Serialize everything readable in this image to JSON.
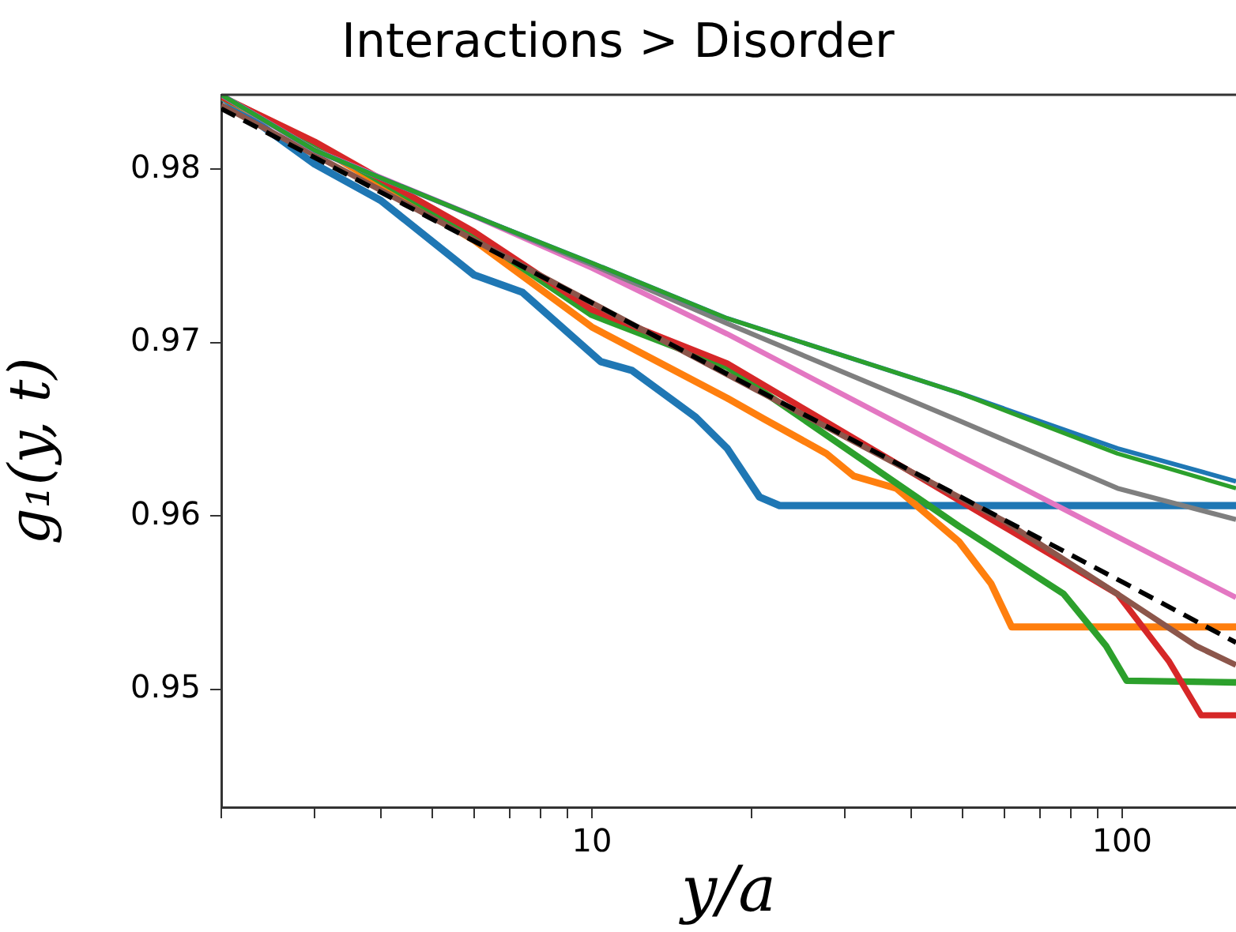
{
  "chart_data": {
    "type": "line",
    "title": "Interactions > Disorder",
    "xlabel": "y/a",
    "ylabel": "g₁(y, t)",
    "log": "x",
    "grid": false,
    "legend": false,
    "marker": "none",
    "xlim": [
      2,
      164
    ],
    "xticks": [
      {
        "value": 2,
        "label": null
      },
      {
        "value": 3,
        "label": null
      },
      {
        "value": 4,
        "label": null
      },
      {
        "value": 5,
        "label": null
      },
      {
        "value": 6,
        "label": null
      },
      {
        "value": 7,
        "label": null
      },
      {
        "value": 8,
        "label": null
      },
      {
        "value": 9,
        "label": null
      },
      10,
      {
        "value": 20,
        "label": null
      },
      {
        "value": 30,
        "label": null
      },
      {
        "value": 40,
        "label": null
      },
      {
        "value": 50,
        "label": null
      },
      {
        "value": 60,
        "label": null
      },
      {
        "value": 70,
        "label": null
      },
      {
        "value": 80,
        "label": null
      },
      {
        "value": 90,
        "label": null
      },
      100
    ],
    "ylim": [
      0.9432,
      0.9843
    ],
    "yticks": [
      0.95,
      0.96,
      0.97,
      0.98
    ],
    "series": [
      {
        "color": "#1f77b4",
        "line_style": "solid",
        "x": [
          2,
          3,
          4,
          6,
          7.4,
          10.4,
          11.9,
          15.7,
          18,
          20.7,
          22.6,
          60,
          164
        ],
        "values": [
          0.9842,
          0.9803,
          0.9782,
          0.9739,
          0.9729,
          0.9689,
          0.9684,
          0.9657,
          0.9639,
          0.9611,
          0.9606,
          0.9606,
          0.9606
        ]
      },
      {
        "color": "#ff7f0e",
        "line_style": "solid",
        "x": [
          2,
          3,
          6,
          10,
          18,
          21.1,
          27.7,
          31.2,
          37.5,
          49.3,
          56.6,
          61.9,
          164
        ],
        "values": [
          0.9842,
          0.9814,
          0.9759,
          0.9709,
          0.9668,
          0.9656,
          0.9636,
          0.9623,
          0.9616,
          0.9585,
          0.9561,
          0.9536,
          0.9536
        ]
      },
      {
        "color": "#2ca02c",
        "line_style": "solid",
        "x": [
          2,
          3,
          6,
          10,
          18,
          49.3,
          77.6,
          93.3,
          102,
          164
        ],
        "values": [
          0.9842,
          0.9815,
          0.9762,
          0.9716,
          0.9686,
          0.9594,
          0.9555,
          0.9525,
          0.9505,
          0.9504
        ]
      },
      {
        "color": "#d62728",
        "line_style": "solid",
        "x": [
          2,
          3,
          6,
          10,
          18,
          49.3,
          98,
          122.7,
          141,
          164
        ],
        "values": [
          0.9842,
          0.9816,
          0.9764,
          0.9719,
          0.9688,
          0.9609,
          0.9555,
          0.9516,
          0.9485,
          0.9485
        ]
      },
      {
        "color": "#8c564b",
        "line_style": "solid",
        "x": [
          2,
          10,
          60,
          98,
          138,
          164
        ],
        "values": [
          0.9837,
          0.9723,
          0.9597,
          0.9555,
          0.9525,
          0.9514
        ]
      },
      {
        "color": "#e377c2",
        "line_style": "solid",
        "x": [
          2,
          3,
          6,
          10,
          18,
          49.3,
          98,
          164
        ],
        "values": [
          0.9843,
          0.9811,
          0.9773,
          0.9743,
          0.9705,
          0.9635,
          0.9588,
          0.9553
        ]
      },
      {
        "color": "#7f7f7f",
        "line_style": "solid",
        "x": [
          2,
          3,
          4,
          6,
          10,
          18,
          49.3,
          98,
          164
        ],
        "values": [
          0.9843,
          0.9811,
          0.9795,
          0.9773,
          0.9745,
          0.9711,
          0.9655,
          0.9616,
          0.9598
        ]
      },
      {
        "color": "#1f77b4",
        "line_style": "solid",
        "x": [
          2,
          3,
          4,
          6,
          10,
          18,
          49.3,
          98,
          164
        ],
        "values": [
          0.9843,
          0.9811,
          0.9795,
          0.9773,
          0.9746,
          0.9714,
          0.9671,
          0.9639,
          0.962
        ]
      },
      {
        "color": "#2ca02c",
        "line_style": "solid",
        "x": [
          2,
          3,
          4,
          6,
          10,
          18,
          49.3,
          98,
          164
        ],
        "values": [
          0.9843,
          0.9811,
          0.9795,
          0.9773,
          0.9746,
          0.9714,
          0.9671,
          0.9636,
          0.9616
        ]
      },
      {
        "color": "#000000",
        "line_style": "dashed",
        "x": [
          2,
          10,
          100,
          164
        ],
        "values": [
          0.9835,
          0.9723,
          0.9562,
          0.9527
        ]
      }
    ]
  }
}
